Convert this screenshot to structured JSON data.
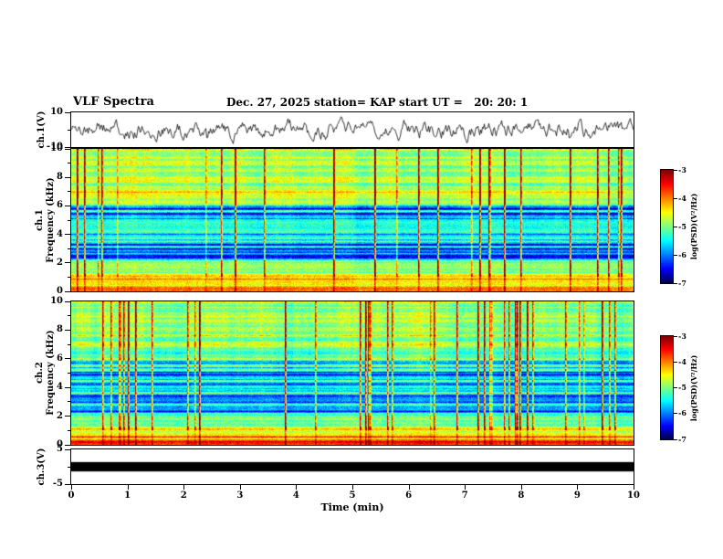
{
  "header": {
    "title": "VLF Spectra",
    "date": "Dec. 27, 2025",
    "station": "station= KAP",
    "start_ut": "start UT =   20: 20: 1"
  },
  "axes": {
    "x": {
      "label": "Time (min)",
      "min": 0,
      "max": 10,
      "ticks": [
        0,
        1,
        2,
        3,
        4,
        5,
        6,
        7,
        8,
        9,
        10
      ]
    },
    "ch1_wave": {
      "ylabel": "ch.1(V)",
      "min": -10,
      "max": 10,
      "tick_values": [
        10,
        0,
        -10
      ],
      "tick_labels": [
        "10",
        "",
        "-10"
      ]
    },
    "spec1": {
      "ylabel_line1": "ch.1",
      "ylabel_line2": "Frequency (kHz)",
      "min": 0,
      "max": 10,
      "major_ticks": [
        0,
        2,
        4,
        6,
        8,
        10
      ]
    },
    "spec2": {
      "ylabel_line1": "ch.2",
      "ylabel_line2": "Frequency (kHz)",
      "min": 0,
      "max": 10,
      "major_ticks": [
        0,
        2,
        4,
        6,
        8,
        10
      ]
    },
    "ch3_wave": {
      "ylabel": "ch.3(V)",
      "min": -5,
      "max": 5,
      "tick_values": [
        5,
        0,
        -5
      ],
      "tick_labels": [
        "5",
        "",
        "-5"
      ]
    }
  },
  "colorbar": {
    "label": "log(PSD)(V²/Hz)",
    "tick_labels": [
      "-3",
      "-4",
      "-5",
      "-6",
      "-7"
    ],
    "min": -7,
    "max": -3,
    "colormap": "jet",
    "key_colors_top_to_bottom": [
      "#b00000",
      "#ff0000",
      "#ffa500",
      "#ffff00",
      "#40ff40",
      "#00ffff",
      "#0000ff",
      "#000050"
    ]
  },
  "chart_data": [
    {
      "type": "line",
      "panel": "ch1_waveform",
      "title": "ch.1 time-series voltage",
      "xlabel": "Time (min)",
      "ylabel": "ch.1(V)",
      "x_range": [
        0,
        10
      ],
      "ylim": [
        -10,
        10
      ],
      "description": "Continuous noisy voltage trace fluctuating about 0 V, typical excursions ±3–6 V with occasional spikes toward ±9 V",
      "synthesis": {
        "seed": 11,
        "smooth": 0.78,
        "step": 5.5,
        "spike_prob": 0.025,
        "spike_amp": 9
      }
    },
    {
      "type": "heatmap",
      "panel": "ch1_spectrogram",
      "title": "ch.1 VLF spectrogram",
      "xlabel": "Time (min)",
      "ylabel": "Frequency (kHz)",
      "x_range": [
        0,
        10
      ],
      "y_range": [
        0,
        10
      ],
      "value_range": [
        -7,
        -3
      ],
      "value_label": "log(PSD)(V²/Hz)",
      "colormap": "jet",
      "description": "Broadband VLF noise: bright orange/yellow band below ~1.3 kHz, quieter blue horizontally-striped region 2–6 kHz, green background above with red vertical sferic streaks reaching 10 kHz",
      "synthesis": {
        "seed": 7,
        "noise": 0.5,
        "stripe_strength": 0.55,
        "dark_stripe_prob": 0.3,
        "bright_stripe_prob": 0.07,
        "streak_density": 0.05,
        "streak_strength": 1.7,
        "bands": [
          {
            "f_lo": 0.0,
            "f_hi": 0.4,
            "level": -4.0
          },
          {
            "f_lo": 0.4,
            "f_hi": 1.3,
            "level": -4.4
          },
          {
            "f_lo": 1.3,
            "f_hi": 2.2,
            "level": -5.0
          },
          {
            "f_lo": 2.2,
            "f_hi": 3.8,
            "level": -5.65
          },
          {
            "f_lo": 3.8,
            "f_hi": 5.6,
            "level": -5.4
          },
          {
            "f_lo": 5.6,
            "f_hi": 7.6,
            "level": -5.0
          },
          {
            "f_lo": 7.6,
            "f_hi": 10.0,
            "level": -4.9
          }
        ]
      }
    },
    {
      "type": "heatmap",
      "panel": "ch2_spectrogram",
      "title": "ch.2 VLF spectrogram",
      "xlabel": "Time (min)",
      "ylabel": "Frequency (kHz)",
      "x_range": [
        0,
        10
      ],
      "y_range": [
        0,
        10
      ],
      "value_range": [
        -7,
        -3
      ],
      "value_label": "log(PSD)(V²/Hz)",
      "colormap": "jet",
      "description": "Same structure as ch.1: bright low-frequency band, blue striped 2–5.5 kHz region, green/cyan upper half with red vertical streaks",
      "synthesis": {
        "seed": 23,
        "noise": 0.5,
        "stripe_strength": 0.55,
        "dark_stripe_prob": 0.28,
        "bright_stripe_prob": 0.07,
        "streak_density": 0.05,
        "streak_strength": 1.7,
        "bands": [
          {
            "f_lo": 0.0,
            "f_hi": 0.4,
            "level": -4.0
          },
          {
            "f_lo": 0.4,
            "f_hi": 1.3,
            "level": -4.45
          },
          {
            "f_lo": 1.3,
            "f_hi": 2.2,
            "level": -5.05
          },
          {
            "f_lo": 2.2,
            "f_hi": 3.8,
            "level": -5.6
          },
          {
            "f_lo": 3.8,
            "f_hi": 5.4,
            "level": -5.4
          },
          {
            "f_lo": 5.4,
            "f_hi": 7.6,
            "level": -5.05
          },
          {
            "f_lo": 7.6,
            "f_hi": 10.0,
            "level": -4.95
          }
        ]
      }
    },
    {
      "type": "line",
      "panel": "ch3_waveform",
      "title": "ch.3 time-series voltage",
      "xlabel": "Time (min)",
      "ylabel": "ch.3(V)",
      "x_range": [
        0,
        10
      ],
      "ylim": [
        -5,
        5
      ],
      "description": "Saturated/clipped channel rendered as a solid black band around 0 V spanning the whole record",
      "synthesis": {
        "bar_half_height_v": 1.35
      }
    }
  ]
}
